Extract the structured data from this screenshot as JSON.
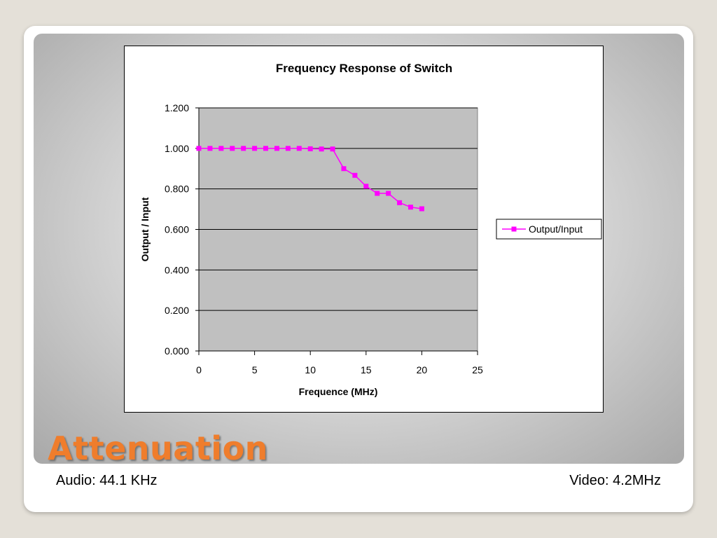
{
  "slide": {
    "title": "Attenuation",
    "footer_left": "Audio: 44.1 KHz",
    "footer_right": "Video: 4.2MHz"
  },
  "chart_data": {
    "type": "line",
    "title": "Frequency Response of Switch",
    "xlabel": "Frequence (MHz)",
    "ylabel": "Output / Input",
    "xlim": [
      0,
      25
    ],
    "ylim": [
      0,
      1.2
    ],
    "x_ticks": [
      "0",
      "5",
      "10",
      "15",
      "20",
      "25"
    ],
    "y_ticks": [
      "0.000",
      "0.200",
      "0.400",
      "0.600",
      "0.800",
      "1.000",
      "1.200"
    ],
    "grid": "horizontal",
    "legend_position": "right",
    "plot_background": "#c0c0c0",
    "series": [
      {
        "name": "Output/Input",
        "color": "#ff00ff",
        "marker": "square",
        "x": [
          0,
          1,
          2,
          3,
          4,
          5,
          6,
          7,
          8,
          9,
          10,
          11,
          12,
          13,
          14,
          15,
          16,
          17,
          18,
          19,
          20
        ],
        "y": [
          1.0,
          1.0,
          1.0,
          1.0,
          1.0,
          1.0,
          1.0,
          1.0,
          1.0,
          1.0,
          0.998,
          0.997,
          0.997,
          0.9,
          0.867,
          0.813,
          0.778,
          0.778,
          0.732,
          0.71,
          0.702
        ]
      }
    ]
  },
  "colors": {
    "title_orange": "#ef7d2c",
    "series_magenta": "#ff00ff"
  }
}
